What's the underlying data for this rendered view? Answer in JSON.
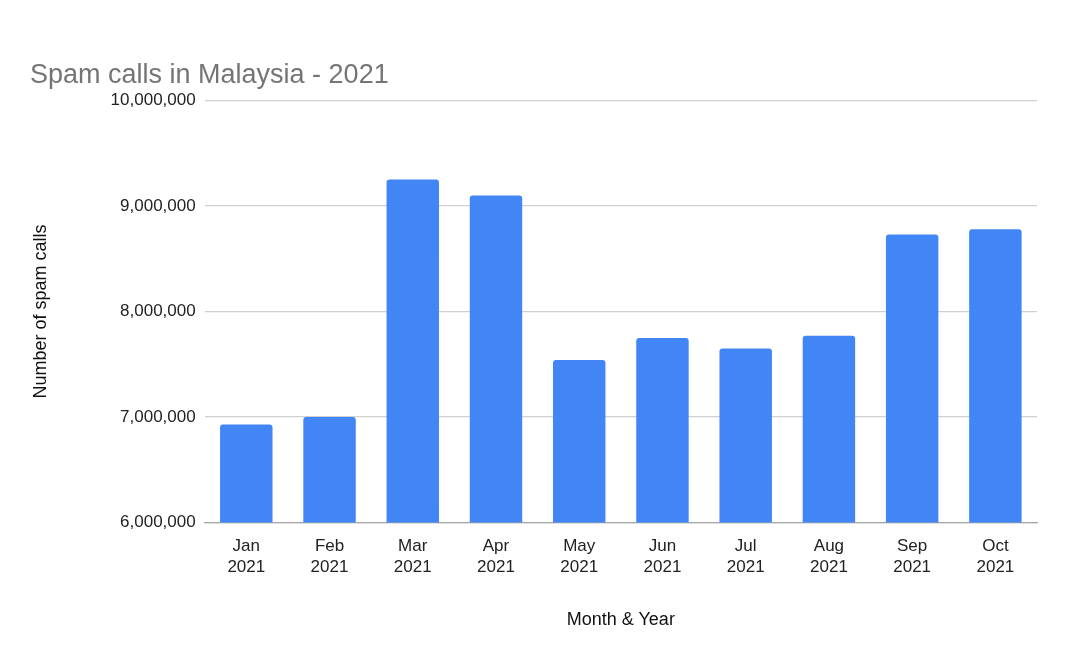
{
  "chart_data": {
    "type": "bar",
    "title": "Spam calls in Malaysia - 2021",
    "xlabel": "Month & Year",
    "ylabel": "Number of spam calls",
    "categories": [
      "Jan 2021",
      "Feb 2021",
      "Mar 2021",
      "Apr 2021",
      "May 2021",
      "Jun 2021",
      "Jul 2021",
      "Aug 2021",
      "Sep 2021",
      "Oct 2021"
    ],
    "values": [
      6930000,
      7000000,
      9250000,
      9100000,
      7540000,
      7750000,
      7650000,
      7770000,
      8730000,
      8780000
    ],
    "color": "#4285f4",
    "ylim": [
      6000000,
      10000000
    ],
    "yticks": [
      {
        "value": 6000000,
        "label": "6,000,000"
      },
      {
        "value": 7000000,
        "label": "7,000,000"
      },
      {
        "value": 8000000,
        "label": "8,000,000"
      },
      {
        "value": 9000000,
        "label": "9,000,000"
      },
      {
        "value": 10000000,
        "label": "10,000,000"
      }
    ],
    "grid": "y",
    "legend": false
  }
}
